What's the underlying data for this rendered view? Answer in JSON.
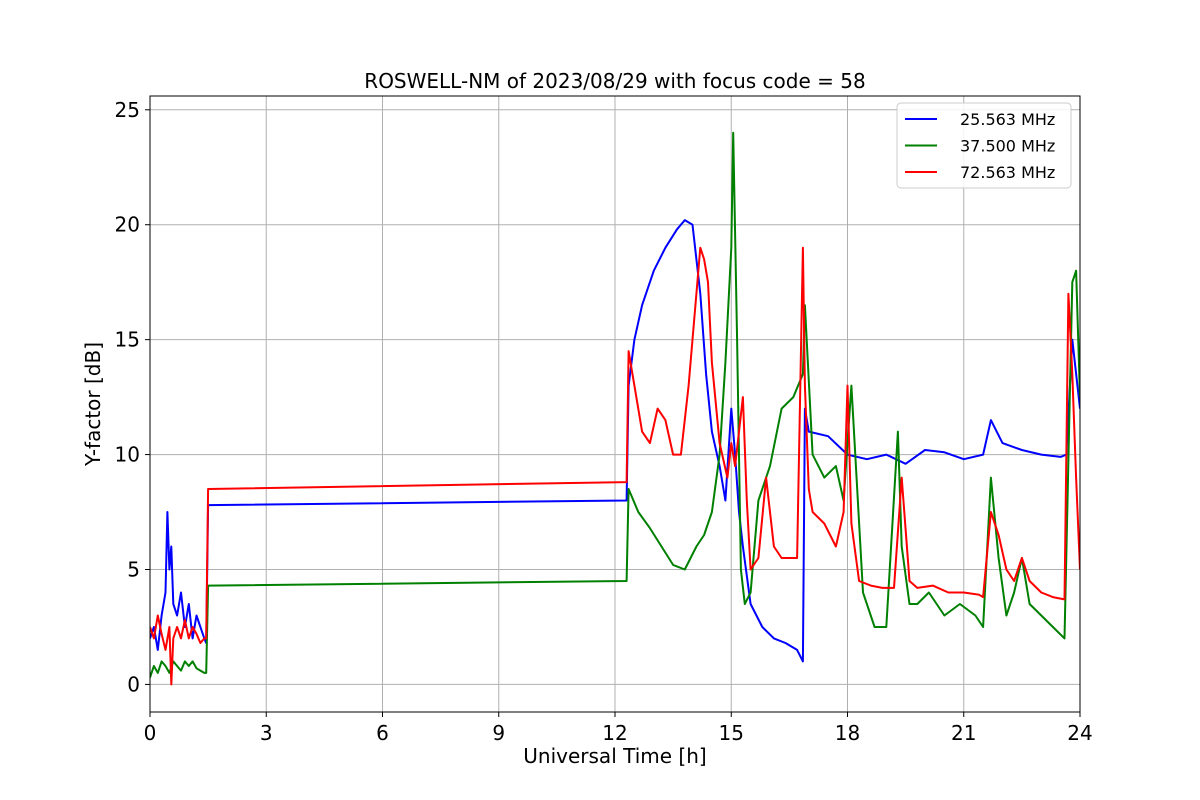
{
  "chart_data": {
    "type": "line",
    "title": "ROSWELL-NM of 2023/08/29 with focus code = 58",
    "xlabel": "Universal Time [h]",
    "ylabel": "Y-factor [dB]",
    "xlim": [
      0,
      24
    ],
    "ylim": [
      -1.2,
      25.6
    ],
    "xticks": [
      0,
      3,
      6,
      9,
      12,
      15,
      18,
      21,
      24
    ],
    "yticks": [
      0,
      5,
      10,
      15,
      20,
      25
    ],
    "grid": true,
    "legend_position": "top-right",
    "series": [
      {
        "name": "25.563 MHz",
        "color": "#0000ff",
        "x": [
          0,
          0.1,
          0.2,
          0.3,
          0.4,
          0.45,
          0.5,
          0.55,
          0.6,
          0.7,
          0.8,
          0.9,
          1.0,
          1.1,
          1.2,
          1.3,
          1.4,
          1.45,
          1.5,
          12.3,
          12.35,
          12.5,
          12.7,
          13.0,
          13.3,
          13.6,
          13.8,
          14.0,
          14.2,
          14.35,
          14.5,
          14.7,
          14.85,
          15.0,
          15.1,
          15.2,
          15.3,
          15.5,
          15.8,
          16.1,
          16.4,
          16.7,
          16.85,
          16.9,
          17.0,
          17.5,
          18.0,
          18.5,
          19.0,
          19.5,
          20.0,
          20.5,
          21.0,
          21.5,
          21.7,
          22.0,
          22.5,
          23.0,
          23.5,
          23.65,
          23.8,
          24.0
        ],
        "y": [
          2.0,
          2.5,
          1.5,
          3.0,
          4.0,
          7.5,
          5.0,
          6.0,
          3.5,
          3.0,
          4.0,
          2.5,
          3.5,
          2.0,
          3.0,
          2.5,
          2.0,
          1.8,
          7.8,
          8.0,
          13.0,
          15.0,
          16.5,
          18.0,
          19.0,
          19.8,
          20.2,
          20.0,
          17.0,
          13.5,
          11.0,
          9.5,
          8.0,
          12.0,
          10.0,
          7.5,
          6.0,
          3.5,
          2.5,
          2.0,
          1.8,
          1.5,
          1.0,
          12.0,
          11.0,
          10.8,
          10.0,
          9.8,
          10.0,
          9.6,
          10.2,
          10.1,
          9.8,
          10.0,
          11.5,
          10.5,
          10.2,
          10.0,
          9.9,
          10.0,
          15.0,
          12.0
        ]
      },
      {
        "name": "37.500 MHz",
        "color": "#008000",
        "x": [
          0,
          0.1,
          0.2,
          0.3,
          0.4,
          0.5,
          0.6,
          0.7,
          0.8,
          0.9,
          1.0,
          1.1,
          1.2,
          1.3,
          1.4,
          1.45,
          1.5,
          12.3,
          12.35,
          12.6,
          12.9,
          13.2,
          13.5,
          13.8,
          14.1,
          14.3,
          14.5,
          14.7,
          14.85,
          15.0,
          15.05,
          15.15,
          15.25,
          15.35,
          15.5,
          15.7,
          16.0,
          16.3,
          16.6,
          16.85,
          16.9,
          17.1,
          17.4,
          17.7,
          17.9,
          18.1,
          18.4,
          18.7,
          19.0,
          19.3,
          19.4,
          19.6,
          19.8,
          20.1,
          20.5,
          20.9,
          21.3,
          21.5,
          21.7,
          21.9,
          22.1,
          22.3,
          22.5,
          22.7,
          23.0,
          23.3,
          23.6,
          23.8,
          23.9,
          24.0
        ],
        "y": [
          0.3,
          0.8,
          0.5,
          1.0,
          0.8,
          0.5,
          1.0,
          0.8,
          0.6,
          1.0,
          0.8,
          1.0,
          0.7,
          0.6,
          0.5,
          0.5,
          4.3,
          4.5,
          8.5,
          7.5,
          6.8,
          6.0,
          5.2,
          5.0,
          6.0,
          6.5,
          7.5,
          10.0,
          14.0,
          19.0,
          24.0,
          15.0,
          5.0,
          3.5,
          4.0,
          8.0,
          9.5,
          12.0,
          12.5,
          13.5,
          16.5,
          10.0,
          9.0,
          9.5,
          8.0,
          13.0,
          4.0,
          2.5,
          2.5,
          11.0,
          6.0,
          3.5,
          3.5,
          4.0,
          3.0,
          3.5,
          3.0,
          2.5,
          9.0,
          5.5,
          3.0,
          4.0,
          5.5,
          3.5,
          3.0,
          2.5,
          2.0,
          17.5,
          18.0,
          12.5
        ]
      },
      {
        "name": "72.563 MHz",
        "color": "#ff0000",
        "x": [
          0,
          0.1,
          0.2,
          0.3,
          0.4,
          0.5,
          0.55,
          0.6,
          0.7,
          0.8,
          0.9,
          1.0,
          1.1,
          1.2,
          1.3,
          1.4,
          1.45,
          1.5,
          12.3,
          12.35,
          12.5,
          12.7,
          12.9,
          13.1,
          13.3,
          13.5,
          13.7,
          13.9,
          14.1,
          14.2,
          14.3,
          14.4,
          14.5,
          14.7,
          14.9,
          15.0,
          15.1,
          15.2,
          15.3,
          15.4,
          15.5,
          15.7,
          15.9,
          16.1,
          16.3,
          16.5,
          16.7,
          16.85,
          16.9,
          17.0,
          17.1,
          17.4,
          17.7,
          17.9,
          18.0,
          18.1,
          18.3,
          18.6,
          18.9,
          19.2,
          19.4,
          19.6,
          19.8,
          20.2,
          20.6,
          21.0,
          21.4,
          21.5,
          21.7,
          21.9,
          22.1,
          22.3,
          22.5,
          22.7,
          23.0,
          23.3,
          23.6,
          23.7,
          23.8,
          23.9,
          24.0
        ],
        "y": [
          2.5,
          2.0,
          3.0,
          2.2,
          1.5,
          2.5,
          0.0,
          2.0,
          2.5,
          2.0,
          2.8,
          2.0,
          2.5,
          2.2,
          1.8,
          2.0,
          2.0,
          8.5,
          8.8,
          14.5,
          13.0,
          11.0,
          10.5,
          12.0,
          11.5,
          10.0,
          10.0,
          13.0,
          17.0,
          19.0,
          18.5,
          17.5,
          14.0,
          10.5,
          9.0,
          10.5,
          9.5,
          11.0,
          12.5,
          8.0,
          5.0,
          5.5,
          9.0,
          6.0,
          5.5,
          5.5,
          5.5,
          19.0,
          13.0,
          8.5,
          7.5,
          7.0,
          6.0,
          7.5,
          13.0,
          7.0,
          4.5,
          4.3,
          4.2,
          4.2,
          9.0,
          4.5,
          4.2,
          4.3,
          4.0,
          4.0,
          3.9,
          3.8,
          7.5,
          6.5,
          5.0,
          4.5,
          5.5,
          4.5,
          4.0,
          3.8,
          3.7,
          17.0,
          13.5,
          9.0,
          5.0
        ]
      }
    ]
  }
}
